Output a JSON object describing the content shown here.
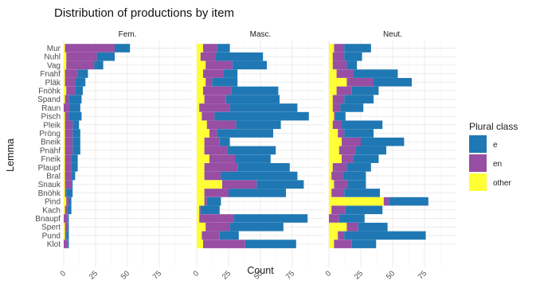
{
  "chart_data": {
    "type": "bar",
    "orientation": "horizontal",
    "stacked": true,
    "title": "Distribution of productions by item",
    "xlabel": "Count",
    "ylabel": "Lemma",
    "xlim": [
      0,
      100
    ],
    "x_ticks": [
      "0",
      "25",
      "50",
      "75"
    ],
    "x_tick_values": [
      0,
      25,
      50,
      75
    ],
    "grid": true,
    "legend": {
      "title": "Plural class",
      "placement": "right",
      "entries": [
        {
          "key": "e",
          "label": "e",
          "color": "#1f78b4"
        },
        {
          "key": "en",
          "label": "en",
          "color": "#984ea3"
        },
        {
          "key": "other",
          "label": "other",
          "color": "#ffff33"
        }
      ]
    },
    "categories": [
      "Mur",
      "Nuhl",
      "Vag",
      "Fnahf",
      "Pläk",
      "Fnöhk",
      "Spand",
      "Raun",
      "Pisch",
      "Pleik",
      "Pröng",
      "Bneik",
      "Pnähf",
      "Fneik",
      "Plaupf",
      "Bral",
      "Snauk",
      "Bnöhk",
      "Pind",
      "Kach",
      "Bnaupf",
      "Spert",
      "Pund",
      "Klot"
    ],
    "facets": [
      {
        "label": "Fem.",
        "series": {
          "other": [
            1,
            2,
            2,
            1,
            1,
            2,
            1,
            0,
            1,
            1,
            1,
            1,
            1,
            1,
            1,
            1,
            1,
            1,
            2,
            1,
            0,
            1,
            1,
            0
          ],
          "en": [
            39,
            24,
            22,
            10,
            8,
            7,
            3,
            5,
            3,
            6,
            6,
            6,
            6,
            5,
            5,
            5,
            5,
            1,
            2,
            2,
            3,
            2,
            1,
            3
          ],
          "e": [
            12,
            14,
            7,
            8,
            8,
            6,
            10,
            8,
            10,
            5,
            6,
            6,
            6,
            5,
            5,
            3,
            1,
            5,
            2,
            3,
            1,
            1,
            2,
            1
          ]
        }
      },
      {
        "label": "Masc.",
        "series": {
          "other": [
            5,
            3,
            7,
            5,
            7,
            5,
            6,
            2,
            4,
            8,
            10,
            6,
            6,
            10,
            6,
            6,
            20,
            6,
            6,
            2,
            2,
            7,
            4,
            5
          ],
          "en": [
            11,
            12,
            21,
            16,
            5,
            22,
            17,
            24,
            10,
            23,
            6,
            12,
            18,
            20,
            26,
            13,
            27,
            19,
            2,
            1,
            27,
            19,
            14,
            33
          ],
          "e": [
            10,
            37,
            27,
            11,
            20,
            37,
            42,
            53,
            74,
            35,
            44,
            8,
            38,
            28,
            41,
            60,
            37,
            45,
            11,
            15,
            58,
            42,
            15,
            40
          ]
        }
      },
      {
        "label": "Neut.",
        "series": {
          "other": [
            4,
            3,
            3,
            6,
            14,
            6,
            3,
            3,
            4,
            3,
            7,
            10,
            8,
            10,
            3,
            2,
            4,
            2,
            43,
            2,
            0,
            14,
            7,
            4
          ],
          "en": [
            8,
            9,
            11,
            13,
            21,
            12,
            9,
            6,
            1,
            7,
            5,
            15,
            13,
            9,
            11,
            9,
            11,
            10,
            4,
            11,
            8,
            9,
            5,
            14
          ],
          "e": [
            21,
            14,
            8,
            35,
            30,
            21,
            23,
            18,
            8,
            32,
            23,
            34,
            24,
            20,
            19,
            18,
            14,
            28,
            31,
            29,
            20,
            23,
            64,
            19
          ]
        }
      }
    ]
  }
}
